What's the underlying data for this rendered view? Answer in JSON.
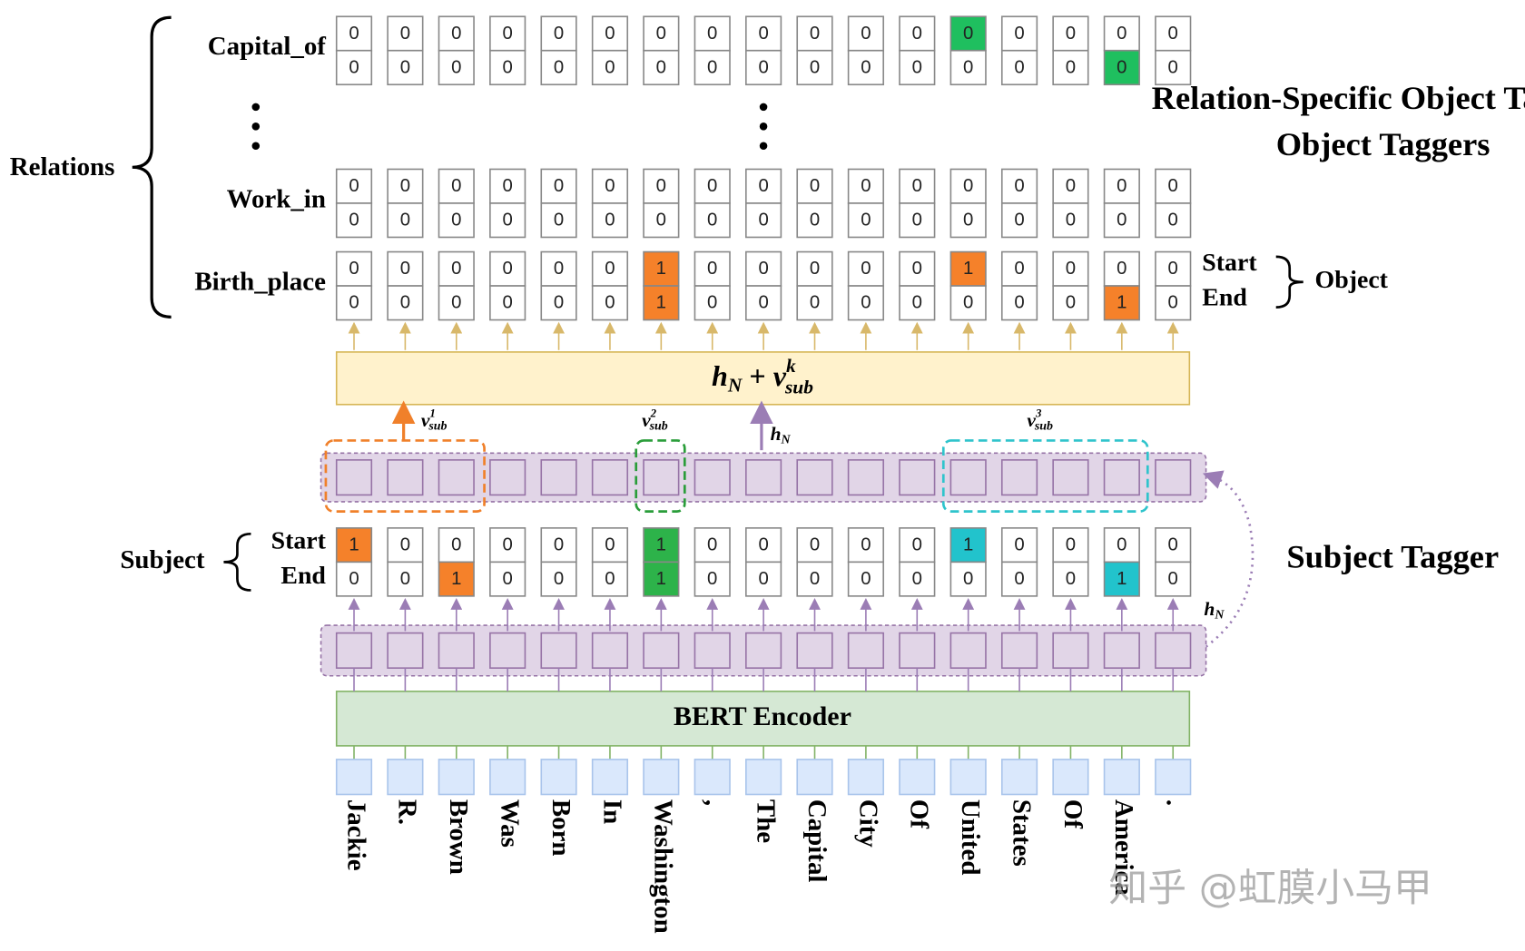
{
  "tokens": [
    "Jackie",
    "R.",
    "Brown",
    "Was",
    "Born",
    "In",
    "Washington",
    ",",
    "The",
    "Capital",
    "City",
    "Of",
    "United",
    "States",
    "Of",
    "America",
    "."
  ],
  "relations": {
    "label": "Relations",
    "rows": [
      {
        "label": "Capital_of",
        "start": [
          "0",
          "0",
          "0",
          "0",
          "0",
          "0",
          "0",
          "0",
          "0",
          "0",
          "0",
          "0",
          "0",
          "0",
          "0",
          "0",
          "0"
        ],
        "end": [
          "0",
          "0",
          "0",
          "0",
          "0",
          "0",
          "0",
          "0",
          "0",
          "0",
          "0",
          "0",
          "0",
          "0",
          "0",
          "0",
          "0"
        ]
      },
      {
        "label": "Work_in",
        "start": [
          "0",
          "0",
          "0",
          "0",
          "0",
          "0",
          "0",
          "0",
          "0",
          "0",
          "0",
          "0",
          "0",
          "0",
          "0",
          "0",
          "0"
        ],
        "end": [
          "0",
          "0",
          "0",
          "0",
          "0",
          "0",
          "0",
          "0",
          "0",
          "0",
          "0",
          "0",
          "0",
          "0",
          "0",
          "0",
          "0"
        ]
      },
      {
        "label": "Birth_place",
        "start": [
          "0",
          "0",
          "0",
          "0",
          "0",
          "0",
          "1",
          "0",
          "0",
          "0",
          "0",
          "0",
          "1",
          "0",
          "0",
          "0",
          "0"
        ],
        "end": [
          "0",
          "0",
          "0",
          "0",
          "0",
          "0",
          "1",
          "0",
          "0",
          "0",
          "0",
          "0",
          "0",
          "0",
          "0",
          "1",
          "0"
        ]
      }
    ]
  },
  "object": {
    "label": "Object",
    "start_label": "Start",
    "end_label": "End"
  },
  "object_tagger_title": "Relation-Specific Object Taggers",
  "formula": {
    "h": "h",
    "h_sub": "N",
    "plus": "+",
    "v": "v",
    "v_sup": "k",
    "v_sub": "sub"
  },
  "subject_vectors": [
    {
      "v": "v",
      "sup": "1",
      "sub": "sub"
    },
    {
      "v": "v",
      "sup": "2",
      "sub": "sub"
    },
    {
      "v": "v",
      "sup": "3",
      "sub": "sub"
    }
  ],
  "hn_label": {
    "h": "h",
    "sub": "N"
  },
  "subject": {
    "label": "Subject",
    "start_label": "Start",
    "end_label": "End",
    "start": [
      "1",
      "0",
      "0",
      "0",
      "0",
      "0",
      "1",
      "0",
      "0",
      "0",
      "0",
      "0",
      "1",
      "0",
      "0",
      "0",
      "0"
    ],
    "end": [
      "0",
      "0",
      "1",
      "0",
      "0",
      "0",
      "1",
      "0",
      "0",
      "0",
      "0",
      "0",
      "0",
      "0",
      "0",
      "1",
      "0"
    ]
  },
  "subject_tagger_title": "Subject Tagger",
  "encoder_label": "BERT Encoder",
  "watermark": "知乎 @虹膜小马甲"
}
